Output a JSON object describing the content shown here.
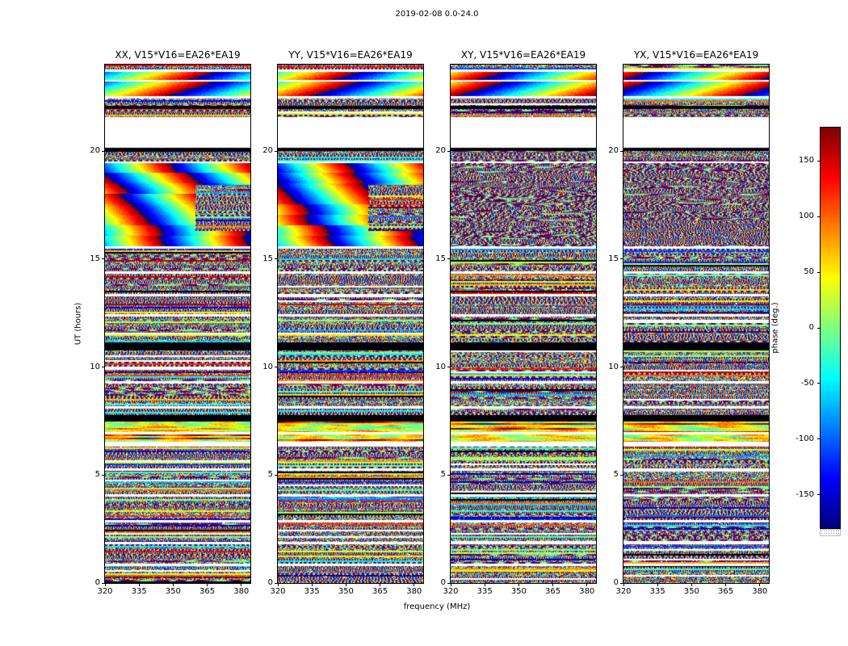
{
  "chart_data": {
    "type": "heatmap",
    "title": "2019-02-08 0.0-24.0",
    "xlabel": "frequency (MHz)",
    "ylabel": "UT (hours)",
    "x_range": [
      320,
      384
    ],
    "y_range": [
      0,
      24
    ],
    "x_ticks": [
      320,
      335,
      350,
      365,
      380
    ],
    "y_ticks": [
      0,
      5,
      10,
      15,
      20
    ],
    "colorbar": {
      "label": "phase (deg.)",
      "ticks": [
        150,
        100,
        50,
        0,
        -50,
        -100,
        -150
      ],
      "range": [
        -180,
        180
      ],
      "colormap": "jet"
    },
    "panels": [
      {
        "title": "XX, V15*V16=EA26*EA19",
        "style": "parallel",
        "seed": 1
      },
      {
        "title": "YY, V15*V16=EA26*EA19",
        "style": "parallel",
        "seed": 2
      },
      {
        "title": "XY, V15*V16=EA26*EA19",
        "style": "cross",
        "seed": 3
      },
      {
        "title": "YX, V15*V16=EA26*EA19",
        "style": "cross",
        "seed": 4
      }
    ],
    "mainband_patch": {
      "t_top": 18.45,
      "t_bot": 16.3,
      "f_frac": 0.62
    },
    "time_segments": [
      {
        "top": 24.0,
        "bot": 23.78,
        "kind": "noise"
      },
      {
        "top": 23.78,
        "bot": 23.7,
        "kind": "white"
      },
      {
        "top": 23.7,
        "bot": 23.32,
        "kind": "smooth"
      },
      {
        "top": 23.32,
        "bot": 23.24,
        "kind": "white"
      },
      {
        "top": 23.24,
        "bot": 22.55,
        "kind": "smooth"
      },
      {
        "top": 22.55,
        "bot": 22.45,
        "kind": "white"
      },
      {
        "top": 22.45,
        "bot": 22.1,
        "kind": "noise"
      },
      {
        "top": 22.1,
        "bot": 21.95,
        "kind": "black"
      },
      {
        "top": 21.95,
        "bot": 21.6,
        "kind": "noise"
      },
      {
        "top": 21.6,
        "bot": 20.15,
        "kind": "white"
      },
      {
        "top": 20.15,
        "bot": 20.02,
        "kind": "black"
      },
      {
        "top": 20.02,
        "bot": 19.55,
        "kind": "noise"
      },
      {
        "top": 19.55,
        "bot": 19.45,
        "kind": "white"
      },
      {
        "top": 19.45,
        "bot": 15.62,
        "kind": "mainband"
      },
      {
        "top": 15.62,
        "bot": 15.5,
        "kind": "white"
      },
      {
        "top": 15.5,
        "bot": 14.45,
        "kind": "noise"
      },
      {
        "top": 14.45,
        "bot": 14.35,
        "kind": "white"
      },
      {
        "top": 14.35,
        "bot": 13.4,
        "kind": "noise"
      },
      {
        "top": 13.4,
        "bot": 13.3,
        "kind": "white"
      },
      {
        "top": 13.3,
        "bot": 12.45,
        "kind": "noise"
      },
      {
        "top": 12.45,
        "bot": 12.35,
        "kind": "white"
      },
      {
        "top": 12.35,
        "bot": 11.15,
        "kind": "noise"
      },
      {
        "top": 11.15,
        "bot": 10.78,
        "kind": "black"
      },
      {
        "top": 10.78,
        "bot": 9.35,
        "kind": "noise"
      },
      {
        "top": 9.35,
        "bot": 9.25,
        "kind": "white"
      },
      {
        "top": 9.25,
        "bot": 8.2,
        "kind": "noise"
      },
      {
        "top": 8.2,
        "bot": 8.1,
        "kind": "white"
      },
      {
        "top": 8.1,
        "bot": 7.78,
        "kind": "noise"
      },
      {
        "top": 7.78,
        "bot": 7.48,
        "kind": "black"
      },
      {
        "top": 7.48,
        "bot": 7.0,
        "kind": "bright"
      },
      {
        "top": 7.0,
        "bot": 6.9,
        "kind": "white"
      },
      {
        "top": 6.9,
        "bot": 6.55,
        "kind": "bright"
      },
      {
        "top": 6.55,
        "bot": 6.32,
        "kind": "white"
      },
      {
        "top": 6.32,
        "bot": 5.32,
        "kind": "noise"
      },
      {
        "top": 5.32,
        "bot": 5.22,
        "kind": "white"
      },
      {
        "top": 5.22,
        "bot": 4.12,
        "kind": "noise"
      },
      {
        "top": 4.12,
        "bot": 4.02,
        "kind": "white"
      },
      {
        "top": 4.02,
        "bot": 2.92,
        "kind": "noise"
      },
      {
        "top": 2.92,
        "bot": 2.82,
        "kind": "white"
      },
      {
        "top": 2.82,
        "bot": 1.92,
        "kind": "noise"
      },
      {
        "top": 1.92,
        "bot": 1.82,
        "kind": "white"
      },
      {
        "top": 1.82,
        "bot": 0.92,
        "kind": "noise"
      },
      {
        "top": 0.92,
        "bot": 0.82,
        "kind": "white"
      },
      {
        "top": 0.82,
        "bot": 0.0,
        "kind": "noise"
      }
    ]
  }
}
